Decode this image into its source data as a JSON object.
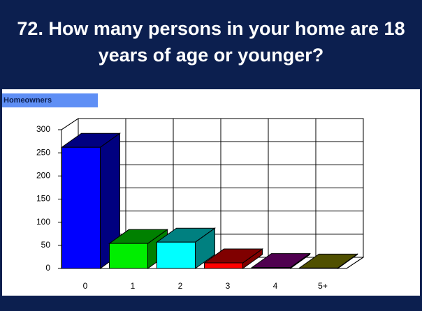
{
  "chart_data": {
    "type": "bar3d",
    "title": "72. How many persons in your home are 18 years of age or younger?",
    "subtitle": "Homeowners",
    "categories": [
      "0",
      "1",
      "2",
      "3",
      "4",
      "5+"
    ],
    "values": [
      262,
      54,
      57,
      12,
      2,
      1
    ],
    "colors": [
      "#0000ff",
      "#00ee00",
      "#00ffff",
      "#ff0000",
      "#800080",
      "#808000"
    ],
    "side_colors": [
      "#000080",
      "#008000",
      "#008080",
      "#800000",
      "#500050",
      "#505000"
    ],
    "ylim": [
      0,
      300
    ],
    "yticks": [
      0,
      50,
      100,
      150,
      200,
      250,
      300
    ],
    "grid": true
  }
}
